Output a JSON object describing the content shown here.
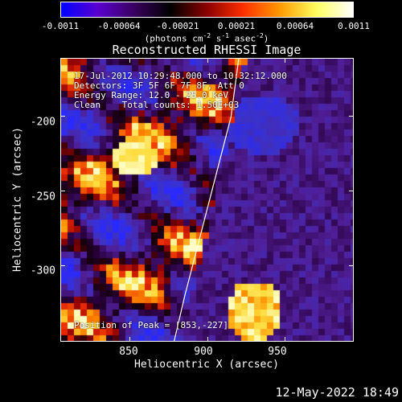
{
  "colorbar": {
    "tick_labels": [
      "-0.0011",
      "-0.00064",
      "-0.00021",
      "0.00021",
      "0.00064",
      "0.0011"
    ],
    "units_prefix": "(photons cm",
    "units_exp1": "-2",
    "units_mid1": " s",
    "units_exp2": "-1",
    "units_mid2": " asec",
    "units_exp3": "-2",
    "units_suffix": ")",
    "colors": [
      "#0000ff",
      "#5a00d0",
      "#3a0060",
      "#000000",
      "#8b0000",
      "#ff3000",
      "#ff9a00",
      "#ffff60",
      "#ffffff"
    ]
  },
  "map": {
    "title": "Reconstructed RHESSI Image",
    "info_line1": "17-Jul-2012 10:29:48.000 to 10:32:12.000",
    "info_line2": "Detectors: 3F 5F 6F 7F 8F, Att 0",
    "info_line3": "Energy Range: 12.0 - 25.0 keV",
    "info_line4": "Clean    Total counts: 1.50E+03",
    "peak_text": "Position of Peak = [853,-227]"
  },
  "axes": {
    "x_label": "Heliocentric X (arcsec)",
    "y_label": "Heliocentric Y (arcsec)",
    "x_ticks": [
      "850",
      "900",
      "950"
    ],
    "y_ticks": [
      "-200",
      "-250",
      "-300"
    ],
    "xlim": [
      805,
      995
    ],
    "ylim": [
      -351,
      -161
    ]
  },
  "footer": {
    "timestamp": "12-May-2022 18:49"
  },
  "chart_data": {
    "type": "heatmap",
    "title": "Reconstructed RHESSI Image",
    "xlabel": "Heliocentric X (arcsec)",
    "ylabel": "Heliocentric Y (arcsec)",
    "xlim": [
      805,
      995
    ],
    "ylim": [
      -351,
      -161
    ],
    "x_ticks": [
      850,
      900,
      950
    ],
    "y_ticks": [
      -200,
      -250,
      -300
    ],
    "color_range": [
      -0.0011,
      0.0011
    ],
    "colorbar_ticks": [
      -0.0011,
      -0.00064,
      -0.00021,
      0.00021,
      0.00064,
      0.0011
    ],
    "peak_position": [
      853,
      -227
    ],
    "limb_points_x": [
      878,
      885,
      895,
      905,
      915,
      920
    ],
    "limb_points_y": [
      -351,
      -320,
      -280,
      -240,
      -200,
      -161
    ]
  }
}
